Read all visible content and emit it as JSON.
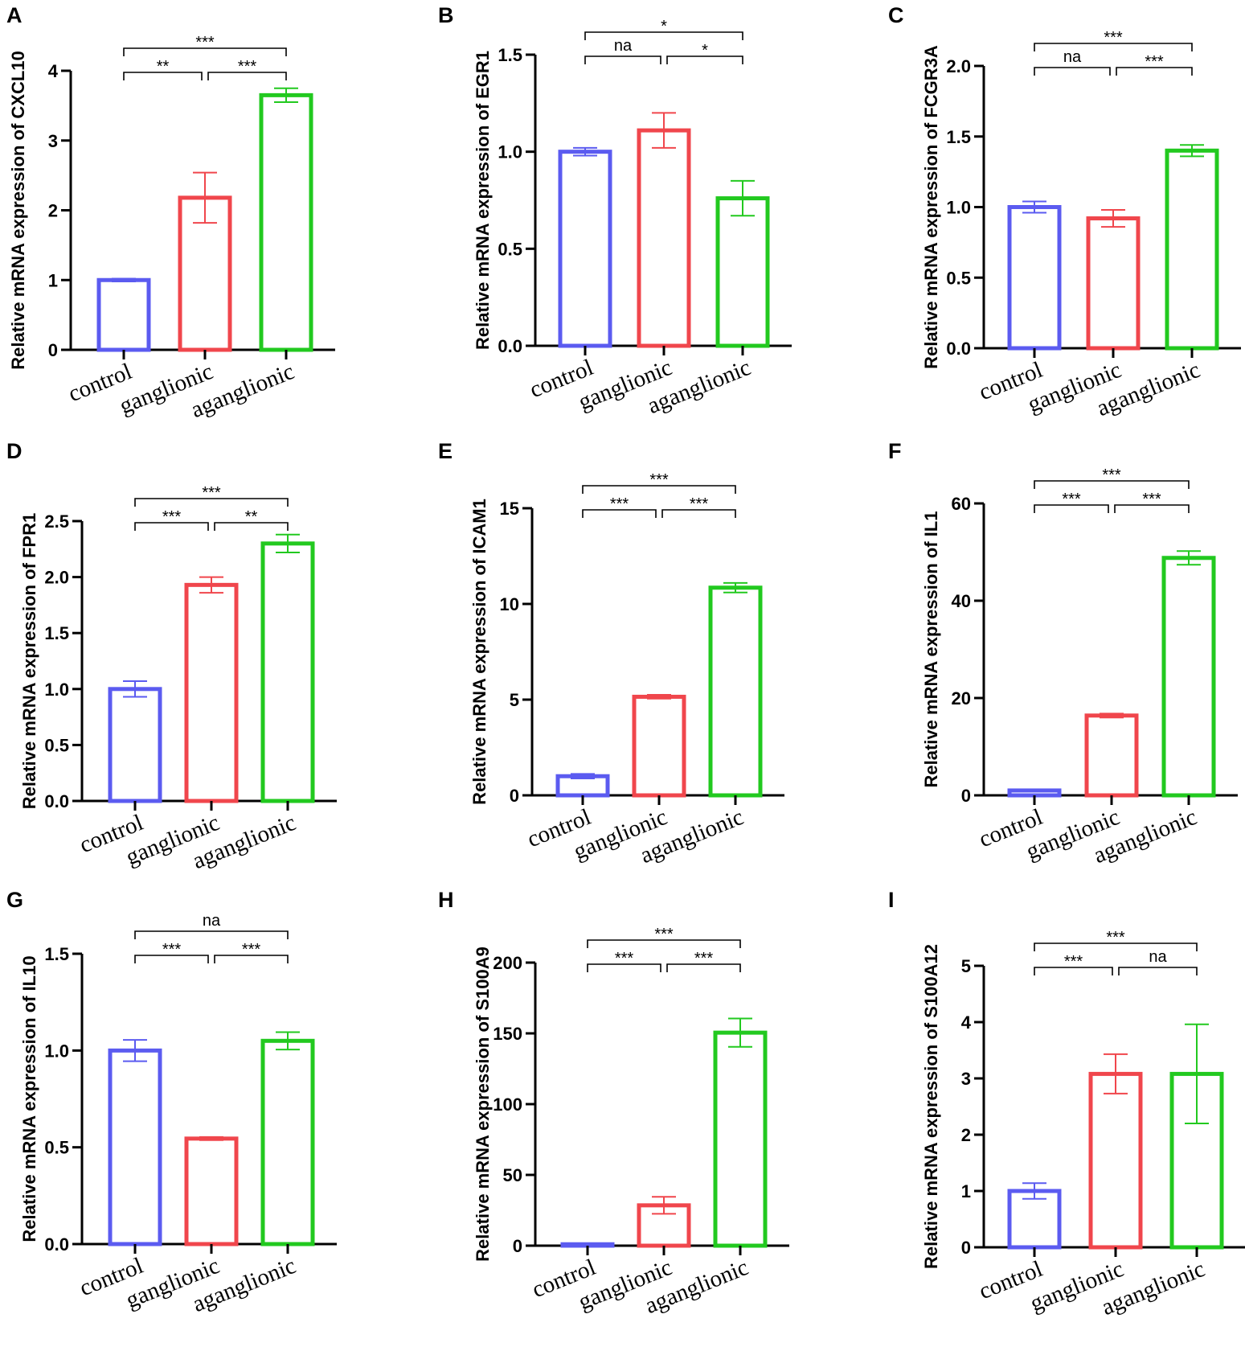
{
  "colors": {
    "control": "#5b5bf0",
    "ganglionic": "#f0464c",
    "aganglionic": "#22c91f",
    "axis": "#000000"
  },
  "chart_data": [
    {
      "panel": "A",
      "type": "bar",
      "ylabel": "Relative mRNA expression of CXCL10",
      "categories": [
        "control",
        "ganglionic",
        "aganglionic"
      ],
      "values": [
        1.0,
        2.18,
        3.65
      ],
      "errors": [
        0.02,
        0.36,
        0.1
      ],
      "ylim": [
        0,
        4
      ],
      "yticks": [
        0,
        1,
        2,
        3,
        4
      ],
      "yticklabels": [
        "0",
        "1",
        "2",
        "3",
        "4"
      ],
      "significance": [
        {
          "pair": [
            0,
            1
          ],
          "label": "**",
          "level": 1
        },
        {
          "pair": [
            1,
            2
          ],
          "label": "***",
          "level": 1
        },
        {
          "pair": [
            0,
            2
          ],
          "label": "***",
          "level": 2
        }
      ]
    },
    {
      "panel": "B",
      "type": "bar",
      "ylabel": "Relative mRNA expression of EGR1",
      "categories": [
        "control",
        "ganglionic",
        "aganglionic"
      ],
      "values": [
        1.0,
        1.11,
        0.76
      ],
      "errors": [
        0.02,
        0.09,
        0.09
      ],
      "ylim": [
        0,
        1.5
      ],
      "yticks": [
        0,
        0.5,
        1.0,
        1.5
      ],
      "yticklabels": [
        "0.0",
        "0.5",
        "1.0",
        "1.5"
      ],
      "significance": [
        {
          "pair": [
            0,
            1
          ],
          "label": "na",
          "level": 1
        },
        {
          "pair": [
            1,
            2
          ],
          "label": "*",
          "level": 1
        },
        {
          "pair": [
            0,
            2
          ],
          "label": "*",
          "level": 2
        }
      ]
    },
    {
      "panel": "C",
      "type": "bar",
      "ylabel": "Relative mRNA expression of FCGR3A",
      "categories": [
        "control",
        "ganglionic",
        "aganglionic"
      ],
      "values": [
        1.0,
        0.92,
        1.4
      ],
      "errors": [
        0.04,
        0.06,
        0.04
      ],
      "ylim": [
        0,
        2.0
      ],
      "yticks": [
        0,
        0.5,
        1.0,
        1.5,
        2.0
      ],
      "yticklabels": [
        "0.0",
        "0.5",
        "1.0",
        "1.5",
        "2.0"
      ],
      "significance": [
        {
          "pair": [
            0,
            1
          ],
          "label": "na",
          "level": 1
        },
        {
          "pair": [
            1,
            2
          ],
          "label": "***",
          "level": 1
        },
        {
          "pair": [
            0,
            2
          ],
          "label": "***",
          "level": 2
        }
      ]
    },
    {
      "panel": "D",
      "type": "bar",
      "ylabel": "Relative mRNA expression of FPR1",
      "categories": [
        "control",
        "ganglionic",
        "aganglionic"
      ],
      "values": [
        1.0,
        1.93,
        2.3
      ],
      "errors": [
        0.07,
        0.07,
        0.08
      ],
      "ylim": [
        0,
        2.5
      ],
      "yticks": [
        0,
        0.5,
        1.0,
        1.5,
        2.0,
        2.5
      ],
      "yticklabels": [
        "0.0",
        "0.5",
        "1.0",
        "1.5",
        "2.0",
        "2.5"
      ],
      "significance": [
        {
          "pair": [
            0,
            1
          ],
          "label": "***",
          "level": 1
        },
        {
          "pair": [
            1,
            2
          ],
          "label": "**",
          "level": 1
        },
        {
          "pair": [
            0,
            2
          ],
          "label": "***",
          "level": 2
        }
      ]
    },
    {
      "panel": "E",
      "type": "bar",
      "ylabel": "Relative mRNA expression of ICAM1",
      "categories": [
        "control",
        "ganglionic",
        "aganglionic"
      ],
      "values": [
        1.0,
        5.15,
        10.85
      ],
      "errors": [
        0.12,
        0.1,
        0.25
      ],
      "ylim": [
        0,
        15
      ],
      "yticks": [
        0,
        5,
        10,
        15
      ],
      "yticklabels": [
        "0",
        "5",
        "10",
        "15"
      ],
      "significance": [
        {
          "pair": [
            0,
            1
          ],
          "label": "***",
          "level": 1
        },
        {
          "pair": [
            1,
            2
          ],
          "label": "***",
          "level": 1
        },
        {
          "pair": [
            0,
            2
          ],
          "label": "***",
          "level": 2
        }
      ]
    },
    {
      "panel": "F",
      "type": "bar",
      "ylabel": "Relative mRNA expression of IL1",
      "categories": [
        "control",
        "ganglionic",
        "aganglionic"
      ],
      "values": [
        1.0,
        16.4,
        48.8
      ],
      "errors": [
        0.1,
        0.4,
        1.4
      ],
      "ylim": [
        0,
        60
      ],
      "yticks": [
        0,
        20,
        40,
        60
      ],
      "yticklabels": [
        "0",
        "20",
        "40",
        "60"
      ],
      "significance": [
        {
          "pair": [
            0,
            1
          ],
          "label": "***",
          "level": 1
        },
        {
          "pair": [
            1,
            2
          ],
          "label": "***",
          "level": 1
        },
        {
          "pair": [
            0,
            2
          ],
          "label": "***",
          "level": 2
        }
      ]
    },
    {
      "panel": "G",
      "type": "bar",
      "ylabel": "Relative mRNA expression of IL10",
      "categories": [
        "control",
        "ganglionic",
        "aganglionic"
      ],
      "values": [
        1.0,
        0.545,
        1.05
      ],
      "errors": [
        0.055,
        0.008,
        0.045
      ],
      "ylim": [
        0,
        1.5
      ],
      "yticks": [
        0,
        0.5,
        1.0,
        1.5
      ],
      "yticklabels": [
        "0.0",
        "0.5",
        "1.0",
        "1.5"
      ],
      "significance": [
        {
          "pair": [
            0,
            1
          ],
          "label": "***",
          "level": 1
        },
        {
          "pair": [
            1,
            2
          ],
          "label": "***",
          "level": 1
        },
        {
          "pair": [
            0,
            2
          ],
          "label": "na",
          "level": 2
        }
      ]
    },
    {
      "panel": "H",
      "type": "bar",
      "ylabel": "Relative mRNA expression of S100A9",
      "categories": [
        "control",
        "ganglionic",
        "aganglionic"
      ],
      "values": [
        1.0,
        28.5,
        150.5
      ],
      "errors": [
        0.2,
        6.0,
        10.0
      ],
      "ylim": [
        0,
        200
      ],
      "yticks": [
        0,
        50,
        100,
        150,
        200
      ],
      "yticklabels": [
        "0",
        "50",
        "100",
        "150",
        "200"
      ],
      "significance": [
        {
          "pair": [
            0,
            1
          ],
          "label": "***",
          "level": 1
        },
        {
          "pair": [
            1,
            2
          ],
          "label": "***",
          "level": 1
        },
        {
          "pair": [
            0,
            2
          ],
          "label": "***",
          "level": 2
        }
      ]
    },
    {
      "panel": "I",
      "type": "bar",
      "ylabel": "Relative mRNA expression of S100A12",
      "categories": [
        "control",
        "ganglionic",
        "aganglionic"
      ],
      "values": [
        1.0,
        3.08,
        3.08
      ],
      "errors": [
        0.14,
        0.35,
        0.88
      ],
      "ylim": [
        0,
        5
      ],
      "yticks": [
        0,
        1,
        2,
        3,
        4,
        5
      ],
      "yticklabels": [
        "0",
        "1",
        "2",
        "3",
        "4",
        "5"
      ],
      "significance": [
        {
          "pair": [
            0,
            1
          ],
          "label": "***",
          "level": 1
        },
        {
          "pair": [
            1,
            2
          ],
          "label": "na",
          "level": 1
        },
        {
          "pair": [
            0,
            2
          ],
          "label": "***",
          "level": 2
        }
      ]
    }
  ]
}
